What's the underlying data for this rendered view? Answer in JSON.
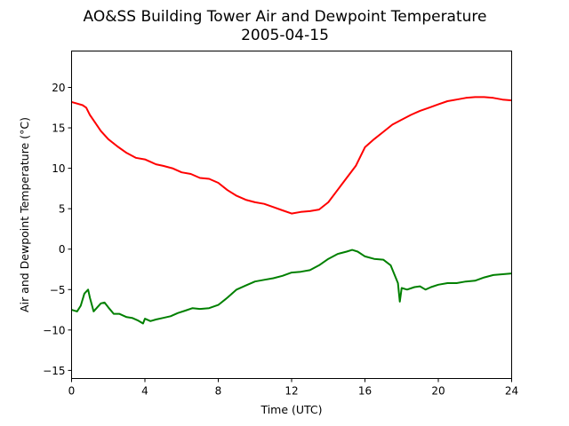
{
  "chart_data": {
    "type": "line",
    "title": "AO&SS Building Tower Air and Dewpoint Temperature",
    "subtitle": "2005-04-15",
    "xlabel": "Time (UTC)",
    "ylabel": "Air and Dewpoint Temperature (°C)",
    "xlim": [
      0,
      24
    ],
    "ylim": [
      -16,
      24.5
    ],
    "xticks": [
      0,
      4,
      8,
      12,
      16,
      20,
      24
    ],
    "yticks": [
      -15,
      -10,
      -5,
      0,
      5,
      10,
      15,
      20
    ],
    "grid": false,
    "legend": "none",
    "series": [
      {
        "color": "#ff0000",
        "x": [
          0,
          0.3,
          0.6,
          0.8,
          1.0,
          1.3,
          1.6,
          2.0,
          2.5,
          3.0,
          3.5,
          4.0,
          4.3,
          4.6,
          5.0,
          5.5,
          6.0,
          6.5,
          7.0,
          7.5,
          8.0,
          8.5,
          9.0,
          9.5,
          10.0,
          10.5,
          11.0,
          11.5,
          12.0,
          12.5,
          13.0,
          13.5,
          14.0,
          14.5,
          15.0,
          15.5,
          16.0,
          16.5,
          17.0,
          17.5,
          18.0,
          18.5,
          19.0,
          19.5,
          20.0,
          20.5,
          21.0,
          21.5,
          22.0,
          22.5,
          23.0,
          23.5,
          24.0
        ],
        "y": [
          18.2,
          18.0,
          17.8,
          17.5,
          16.6,
          15.6,
          14.6,
          13.6,
          12.7,
          11.9,
          11.3,
          11.1,
          10.8,
          10.5,
          10.3,
          10.0,
          9.5,
          9.3,
          8.8,
          8.7,
          8.2,
          7.3,
          6.6,
          6.1,
          5.8,
          5.6,
          5.2,
          4.8,
          4.4,
          4.6,
          4.7,
          4.9,
          5.8,
          7.3,
          8.8,
          10.3,
          12.6,
          13.6,
          14.5,
          15.4,
          16.0,
          16.6,
          17.1,
          17.5,
          17.9,
          18.3,
          18.5,
          18.7,
          18.8,
          18.8,
          18.7,
          18.5,
          18.4
        ]
      },
      {
        "color": "#008000",
        "x": [
          0,
          0.3,
          0.5,
          0.7,
          0.9,
          1.0,
          1.2,
          1.4,
          1.6,
          1.8,
          2.0,
          2.3,
          2.6,
          3.0,
          3.3,
          3.6,
          3.9,
          4.0,
          4.3,
          4.6,
          5.0,
          5.4,
          5.8,
          6.2,
          6.6,
          7.0,
          7.5,
          8.0,
          8.5,
          9.0,
          9.5,
          10.0,
          10.5,
          11.0,
          11.5,
          12.0,
          12.5,
          13.0,
          13.5,
          14.0,
          14.5,
          15.0,
          15.3,
          15.6,
          16.0,
          16.5,
          17.0,
          17.4,
          17.8,
          17.9,
          18.0,
          18.3,
          18.7,
          19.0,
          19.3,
          19.6,
          20.0,
          20.5,
          21.0,
          21.5,
          22.0,
          22.5,
          23.0,
          23.5,
          24.0
        ],
        "y": [
          -7.5,
          -7.7,
          -7.0,
          -5.5,
          -5.0,
          -6.0,
          -7.7,
          -7.2,
          -6.7,
          -6.6,
          -7.2,
          -8.0,
          -8.0,
          -8.4,
          -8.5,
          -8.8,
          -9.2,
          -8.6,
          -8.9,
          -8.7,
          -8.5,
          -8.3,
          -7.9,
          -7.6,
          -7.3,
          -7.4,
          -7.3,
          -6.9,
          -6.0,
          -5.0,
          -4.5,
          -4.0,
          -3.8,
          -3.6,
          -3.3,
          -2.9,
          -2.8,
          -2.6,
          -2.0,
          -1.2,
          -0.6,
          -0.3,
          -0.1,
          -0.3,
          -0.9,
          -1.2,
          -1.3,
          -2.0,
          -4.2,
          -6.5,
          -4.8,
          -5.0,
          -4.7,
          -4.6,
          -5.0,
          -4.7,
          -4.4,
          -4.2,
          -4.2,
          -4.0,
          -3.9,
          -3.5,
          -3.2,
          -3.1,
          -3.0
        ]
      }
    ]
  }
}
